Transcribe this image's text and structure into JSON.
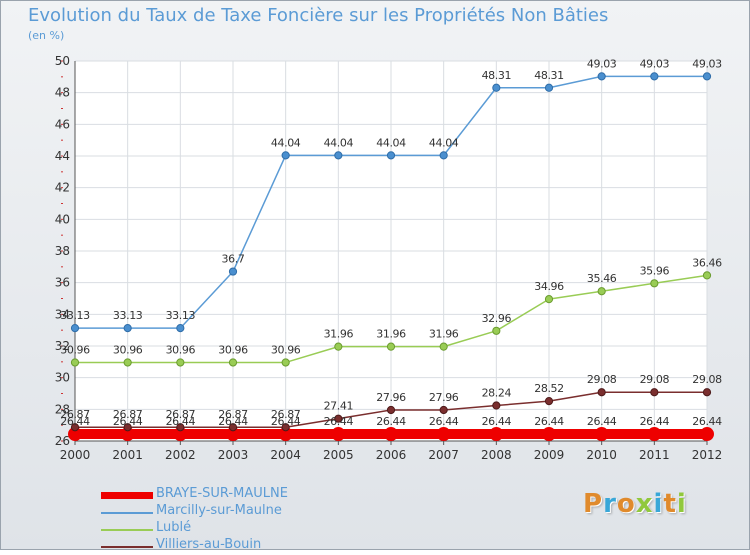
{
  "header": {
    "title": "Evolution du Taux de Taxe Foncière sur les Propriétés Non Bâties",
    "unit": "(en %)"
  },
  "brand": {
    "text": "Proxiti",
    "colors": [
      "#e08a2c",
      "#39a7d8",
      "#e08a2c",
      "#91c83c",
      "#39a7d8",
      "#e08a2c",
      "#91c83c"
    ]
  },
  "chart_data": {
    "type": "line",
    "title": "Evolution du Taux de Taxe Foncière sur les Propriétés Non Bâties",
    "ylabel": "(en %)",
    "xlabel": "",
    "ylim": [
      26,
      50
    ],
    "yticks": [
      26,
      28,
      30,
      32,
      34,
      36,
      38,
      40,
      42,
      44,
      46,
      48,
      50
    ],
    "grid": true,
    "legend_position": "bottom-left",
    "x": [
      "2000",
      "2001",
      "2002",
      "2003",
      "2004",
      "2005",
      "2006",
      "2007",
      "2008",
      "2009",
      "2010",
      "2011",
      "2012"
    ],
    "series": [
      {
        "name": "BRAYE-SUR-MAULNE",
        "color": "#ee0000",
        "values": [
          26.44,
          26.44,
          26.44,
          26.44,
          26.44,
          26.44,
          26.44,
          26.44,
          26.44,
          26.44,
          26.44,
          26.44,
          26.44
        ],
        "labels": [
          "26.44",
          "26.44",
          "26.44",
          "26.44",
          "26.44",
          "26.44",
          "26.44",
          "26.44",
          "26.44",
          "26.44",
          "26.44",
          "26.44",
          "26.44"
        ]
      },
      {
        "name": "Marcilly-sur-Maulne",
        "color": "#5b9bd5",
        "values": [
          33.13,
          33.13,
          33.13,
          36.7,
          44.04,
          44.04,
          44.04,
          44.04,
          48.31,
          48.31,
          49.03,
          49.03,
          49.03
        ],
        "labels": [
          "33.13",
          "33.13",
          "33.13",
          "36.7",
          "44.04",
          "44.04",
          "44.04",
          "44.04",
          "48.31",
          "48.31",
          "49.03",
          "49.03",
          "49.03"
        ]
      },
      {
        "name": "Lublé",
        "color": "#99cc55",
        "values": [
          30.96,
          30.96,
          30.96,
          30.96,
          30.96,
          31.96,
          31.96,
          31.96,
          32.96,
          34.96,
          35.46,
          35.96,
          36.46
        ],
        "labels": [
          "30.96",
          "30.96",
          "30.96",
          "30.96",
          "30.96",
          "31.96",
          "31.96",
          "31.96",
          "32.96",
          "34.96",
          "35.46",
          "35.96",
          "36.46"
        ]
      },
      {
        "name": "Villiers-au-Bouin",
        "color": "#7a2e2e",
        "values": [
          26.87,
          26.87,
          26.87,
          26.87,
          26.87,
          27.41,
          27.96,
          27.96,
          28.24,
          28.52,
          29.08,
          29.08,
          29.08
        ],
        "labels": [
          "26.87",
          "26.87",
          "26.87",
          "26.87",
          "26.87",
          "27.41",
          "27.96",
          "27.96",
          "28.24",
          "28.52",
          "29.08",
          "29.08",
          "29.08"
        ]
      }
    ]
  }
}
